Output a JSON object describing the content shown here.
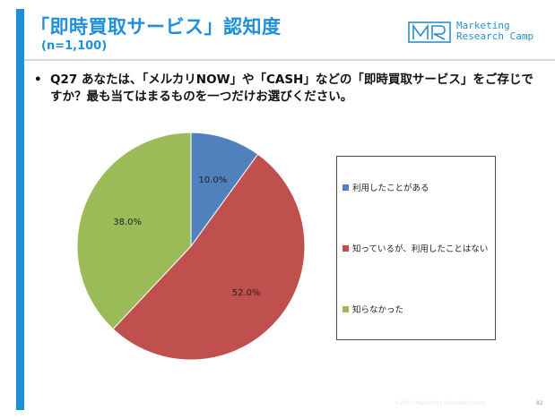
{
  "header": {
    "title": "「即時買取サービス」認知度",
    "subtitle": "(n=1,100)"
  },
  "logo": {
    "mark": "MR",
    "text_line1": "Marketing",
    "text_line2": "Research Camp"
  },
  "question": {
    "bullet": "•",
    "text": "Q27 あなたは、「メルカリNOW」や「CASH」などの「即時買取サービス」をご存じですか？最も当てはまるものを一つだけお選びください。"
  },
  "chart_data": {
    "type": "pie",
    "categories": [
      "利用したことがある",
      "知っているが、利用したことはない",
      "知らなかった"
    ],
    "values": [
      10.0,
      52.0,
      38.0
    ],
    "value_labels": [
      "10.0%",
      "52.0%",
      "38.0%"
    ],
    "colors": [
      "#4f81bd",
      "#c0504d",
      "#9bbb59"
    ],
    "start": "12 o'clock",
    "direction": "clockwise",
    "legend_position": "right"
  },
  "footer": {
    "copyright": "©2017 Marketing Research Camp",
    "page_number": "82"
  }
}
